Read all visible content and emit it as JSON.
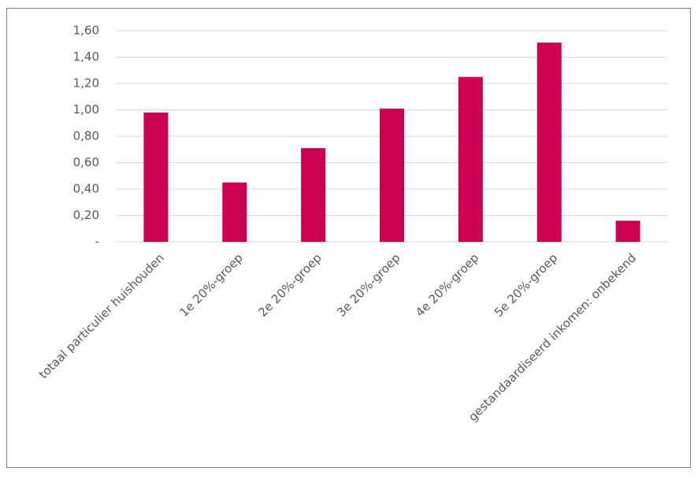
{
  "chart_data": {
    "type": "bar",
    "categories": [
      "totaal particulier huishouden",
      "1e 20%-groep",
      "2e 20%-groep",
      "3e 20%-groep",
      "4e 20%-groep",
      "5e 20%-groep",
      "gestandaardiseerd inkomen: onbekend"
    ],
    "values": [
      0.98,
      0.45,
      0.71,
      1.01,
      1.25,
      1.51,
      0.16
    ],
    "color": "#cc0050",
    "ylim": [
      0,
      1.6
    ],
    "yticks": [
      {
        "value": 0,
        "label": "-"
      },
      {
        "value": 0.2,
        "label": "0,20"
      },
      {
        "value": 0.4,
        "label": "0,40"
      },
      {
        "value": 0.6,
        "label": "0,60"
      },
      {
        "value": 0.8,
        "label": "0,80"
      },
      {
        "value": 1.0,
        "label": "1,00"
      },
      {
        "value": 1.2,
        "label": "1,20"
      },
      {
        "value": 1.4,
        "label": "1,40"
      },
      {
        "value": 1.6,
        "label": "1,60"
      }
    ],
    "grid": true
  }
}
